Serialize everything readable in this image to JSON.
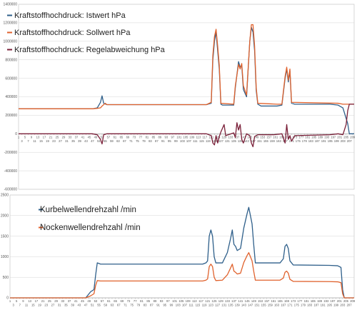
{
  "charts": [
    {
      "type": "line",
      "ylim": [
        -600000,
        1400000
      ],
      "yticks": [
        -600000,
        -400000,
        -200000,
        0,
        200000,
        400000,
        600000,
        800000,
        1000000,
        1200000,
        1400000
      ],
      "xlim": [
        1,
        210
      ],
      "legend_placement": "top-left",
      "grid": true,
      "series": [
        {
          "name": "Kraftstoffhochdruck: Istwert  hPa",
          "color": "#2e5f8a",
          "points": [
            [
              1,
              270000
            ],
            [
              47,
              270000
            ],
            [
              50,
              280000
            ],
            [
              52,
              340000
            ],
            [
              53,
              410000
            ],
            [
              54,
              330000
            ],
            [
              56,
              315000
            ],
            [
              100,
              315000
            ],
            [
              118,
              315000
            ],
            [
              121,
              330000
            ],
            [
              122,
              800000
            ],
            [
              123,
              1000000
            ],
            [
              124,
              1100000
            ],
            [
              125,
              900000
            ],
            [
              126,
              700000
            ],
            [
              127,
              320000
            ],
            [
              128,
              310000
            ],
            [
              135,
              310000
            ],
            [
              136,
              500000
            ],
            [
              138,
              780000
            ],
            [
              139,
              720000
            ],
            [
              140,
              740000
            ],
            [
              141,
              480000
            ],
            [
              143,
              400000
            ],
            [
              145,
              1000000
            ],
            [
              146,
              1150000
            ],
            [
              147,
              1100000
            ],
            [
              148,
              900000
            ],
            [
              149,
              470000
            ],
            [
              150,
              320000
            ],
            [
              152,
              300000
            ],
            [
              162,
              300000
            ],
            [
              165,
              310000
            ],
            [
              167,
              600000
            ],
            [
              168,
              700000
            ],
            [
              169,
              560000
            ],
            [
              170,
              680000
            ],
            [
              171,
              330000
            ],
            [
              173,
              320000
            ],
            [
              195,
              320000
            ],
            [
              200,
              310000
            ],
            [
              203,
              280000
            ],
            [
              206,
              110000
            ],
            [
              207,
              0
            ],
            [
              210,
              0
            ]
          ]
        },
        {
          "name": "Kraftstoffhochdruck: Sollwert  hPa",
          "color": "#e0622d",
          "points": [
            [
              1,
              270000
            ],
            [
              47,
              270000
            ],
            [
              50,
              275000
            ],
            [
              52,
              280000
            ],
            [
              53,
              300000
            ],
            [
              55,
              330000
            ],
            [
              56,
              315000
            ],
            [
              118,
              315000
            ],
            [
              121,
              340000
            ],
            [
              122,
              850000
            ],
            [
              123,
              1050000
            ],
            [
              124,
              1130000
            ],
            [
              125,
              950000
            ],
            [
              126,
              740000
            ],
            [
              127,
              330000
            ],
            [
              135,
              320000
            ],
            [
              136,
              520000
            ],
            [
              138,
              750000
            ],
            [
              139,
              700000
            ],
            [
              140,
              760000
            ],
            [
              141,
              520000
            ],
            [
              143,
              420000
            ],
            [
              145,
              1000000
            ],
            [
              146,
              1180000
            ],
            [
              147,
              1180000
            ],
            [
              148,
              950000
            ],
            [
              149,
              500000
            ],
            [
              150,
              330000
            ],
            [
              162,
              320000
            ],
            [
              165,
              320000
            ],
            [
              167,
              620000
            ],
            [
              168,
              720000
            ],
            [
              169,
              580000
            ],
            [
              170,
              700000
            ],
            [
              171,
              340000
            ],
            [
              200,
              330000
            ],
            [
              203,
              320000
            ],
            [
              210,
              320000
            ]
          ]
        },
        {
          "name": "Kraftstoffhochdruck: Regelabweichung  hPa",
          "color": "#7a1f38",
          "points": [
            [
              1,
              0
            ],
            [
              47,
              0
            ],
            [
              50,
              -10000
            ],
            [
              52,
              -60000
            ],
            [
              53,
              -110000
            ],
            [
              54,
              -10000
            ],
            [
              56,
              0
            ],
            [
              118,
              0
            ],
            [
              121,
              -20000
            ],
            [
              122,
              -100000
            ],
            [
              123,
              -120000
            ],
            [
              124,
              -20000
            ],
            [
              125,
              -100000
            ],
            [
              126,
              -30000
            ],
            [
              127,
              20000
            ],
            [
              129,
              100000
            ],
            [
              130,
              -20000
            ],
            [
              135,
              10000
            ],
            [
              136,
              -40000
            ],
            [
              137,
              120000
            ],
            [
              138,
              40000
            ],
            [
              139,
              100000
            ],
            [
              140,
              -60000
            ],
            [
              141,
              -100000
            ],
            [
              143,
              0
            ],
            [
              145,
              -20000
            ],
            [
              146,
              -100000
            ],
            [
              147,
              -140000
            ],
            [
              148,
              -30000
            ],
            [
              150,
              -10000
            ],
            [
              160,
              -10000
            ],
            [
              165,
              0
            ],
            [
              167,
              -100000
            ],
            [
              168,
              100000
            ],
            [
              169,
              -60000
            ],
            [
              170,
              -20000
            ],
            [
              171,
              -80000
            ],
            [
              173,
              -20000
            ],
            [
              195,
              -10000
            ],
            [
              200,
              0
            ],
            [
              203,
              -10000
            ],
            [
              205,
              100000
            ],
            [
              206,
              250000
            ],
            [
              207,
              320000
            ],
            [
              210,
              320000
            ]
          ]
        }
      ]
    },
    {
      "type": "line",
      "ylim": [
        0,
        2500
      ],
      "yticks": [
        0,
        500,
        1000,
        1500,
        2000,
        2500
      ],
      "xlim": [
        1,
        210
      ],
      "legend_placement": "top-left",
      "grid": true,
      "series": [
        {
          "name": "Kurbelwellendrehzahl  /min",
          "color": "#2e5f8a",
          "points": [
            [
              1,
              0
            ],
            [
              47,
              0
            ],
            [
              50,
              150
            ],
            [
              52,
              200
            ],
            [
              53,
              550
            ],
            [
              54,
              850
            ],
            [
              56,
              820
            ],
            [
              100,
              820
            ],
            [
              118,
              820
            ],
            [
              120,
              850
            ],
            [
              121,
              900
            ],
            [
              122,
              1500
            ],
            [
              123,
              1650
            ],
            [
              124,
              1500
            ],
            [
              125,
              1000
            ],
            [
              126,
              850
            ],
            [
              130,
              850
            ],
            [
              133,
              1100
            ],
            [
              135,
              1450
            ],
            [
              136,
              1650
            ],
            [
              137,
              1300
            ],
            [
              138,
              1250
            ],
            [
              139,
              1150
            ],
            [
              141,
              1200
            ],
            [
              143,
              1700
            ],
            [
              145,
              2050
            ],
            [
              146,
              2200
            ],
            [
              147,
              2000
            ],
            [
              148,
              1800
            ],
            [
              149,
              1300
            ],
            [
              150,
              850
            ],
            [
              165,
              850
            ],
            [
              167,
              950
            ],
            [
              168,
              1250
            ],
            [
              169,
              1300
            ],
            [
              170,
              1200
            ],
            [
              171,
              900
            ],
            [
              173,
              800
            ],
            [
              195,
              790
            ],
            [
              200,
              780
            ],
            [
              202,
              740
            ],
            [
              203,
              200
            ],
            [
              204,
              0
            ],
            [
              210,
              0
            ]
          ]
        },
        {
          "name": "Nockenwellendrehzahl  /min",
          "color": "#e0622d",
          "points": [
            [
              1,
              0
            ],
            [
              47,
              0
            ],
            [
              50,
              50
            ],
            [
              52,
              100
            ],
            [
              53,
              300
            ],
            [
              54,
              420
            ],
            [
              56,
              410
            ],
            [
              118,
              410
            ],
            [
              120,
              430
            ],
            [
              121,
              460
            ],
            [
              122,
              760
            ],
            [
              123,
              820
            ],
            [
              124,
              760
            ],
            [
              125,
              500
            ],
            [
              126,
              420
            ],
            [
              130,
              430
            ],
            [
              133,
              560
            ],
            [
              135,
              730
            ],
            [
              136,
              820
            ],
            [
              137,
              650
            ],
            [
              138,
              620
            ],
            [
              139,
              580
            ],
            [
              141,
              600
            ],
            [
              143,
              860
            ],
            [
              145,
              1030
            ],
            [
              146,
              1100
            ],
            [
              147,
              1000
            ],
            [
              148,
              900
            ],
            [
              149,
              650
            ],
            [
              150,
              430
            ],
            [
              165,
              430
            ],
            [
              167,
              480
            ],
            [
              168,
              620
            ],
            [
              169,
              650
            ],
            [
              170,
              600
            ],
            [
              171,
              450
            ],
            [
              173,
              400
            ],
            [
              195,
              395
            ],
            [
              200,
              390
            ],
            [
              202,
              370
            ],
            [
              203,
              100
            ],
            [
              204,
              0
            ],
            [
              210,
              0
            ]
          ]
        }
      ]
    }
  ]
}
